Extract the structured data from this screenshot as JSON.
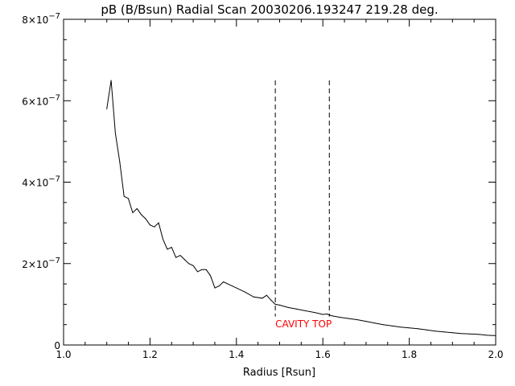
{
  "chart_data": {
    "type": "line",
    "title": "pB (B/Bsun) Radial Scan 20030206.193247 219.28 deg.",
    "xlabel": "Radius [Rsun]",
    "ylabel": "",
    "xlim": [
      1.0,
      2.0
    ],
    "ylim": [
      0,
      8e-07
    ],
    "x_ticks": [
      {
        "value": 1.0,
        "label": "1.0"
      },
      {
        "value": 1.2,
        "label": "1.2"
      },
      {
        "value": 1.4,
        "label": "1.4"
      },
      {
        "value": 1.6,
        "label": "1.6"
      },
      {
        "value": 1.8,
        "label": "1.8"
      },
      {
        "value": 2.0,
        "label": "2.0"
      }
    ],
    "y_ticks": [
      {
        "value": 0,
        "mantissa": "0",
        "exponent": ""
      },
      {
        "value": 2e-07,
        "mantissa": "2×10",
        "exponent": "−7"
      },
      {
        "value": 4e-07,
        "mantissa": "4×10",
        "exponent": "−7"
      },
      {
        "value": 6e-07,
        "mantissa": "6×10",
        "exponent": "−7"
      },
      {
        "value": 8e-07,
        "mantissa": "8×10",
        "exponent": "−7"
      }
    ],
    "grid": false,
    "series": [
      {
        "color": "#000000",
        "x": [
          1.1,
          1.11,
          1.12,
          1.13,
          1.14,
          1.15,
          1.16,
          1.17,
          1.18,
          1.19,
          1.2,
          1.21,
          1.22,
          1.23,
          1.24,
          1.25,
          1.26,
          1.27,
          1.28,
          1.29,
          1.3,
          1.31,
          1.32,
          1.33,
          1.34,
          1.35,
          1.36,
          1.37,
          1.38,
          1.39,
          1.4,
          1.42,
          1.44,
          1.46,
          1.47,
          1.48,
          1.49,
          1.5,
          1.52,
          1.54,
          1.56,
          1.58,
          1.6,
          1.61,
          1.62,
          1.64,
          1.66,
          1.68,
          1.7,
          1.72,
          1.74,
          1.76,
          1.78,
          1.8,
          1.82,
          1.84,
          1.86,
          1.88,
          1.9,
          1.92,
          1.94,
          1.96,
          1.98,
          2.0
        ],
        "y": [
          5.8e-07,
          6.5e-07,
          5.2e-07,
          4.5e-07,
          3.65e-07,
          3.6e-07,
          3.25e-07,
          3.35e-07,
          3.2e-07,
          3.1e-07,
          2.95e-07,
          2.9e-07,
          3e-07,
          2.6e-07,
          2.35e-07,
          2.4e-07,
          2.15e-07,
          2.2e-07,
          2.1e-07,
          2e-07,
          1.95e-07,
          1.8e-07,
          1.85e-07,
          1.85e-07,
          1.7e-07,
          1.4e-07,
          1.45e-07,
          1.55e-07,
          1.5e-07,
          1.45e-07,
          1.4e-07,
          1.3e-07,
          1.18e-07,
          1.15e-07,
          1.22e-07,
          1.1e-07,
          1e-07,
          9.8e-08,
          9.2e-08,
          8.8e-08,
          8.4e-08,
          8e-08,
          7.5e-08,
          7.6e-08,
          7.2e-08,
          6.8e-08,
          6.5e-08,
          6.2e-08,
          5.8e-08,
          5.4e-08,
          5e-08,
          4.7e-08,
          4.4e-08,
          4.2e-08,
          4e-08,
          3.7e-08,
          3.4e-08,
          3.2e-08,
          3e-08,
          2.8e-08,
          2.7e-08,
          2.6e-08,
          2.4e-08,
          2.3e-08
        ]
      }
    ],
    "markers": [
      {
        "x": 1.49,
        "y_top": 6.5e-07,
        "style": "dashed"
      },
      {
        "x": 1.615,
        "y_top": 6.5e-07,
        "style": "dashed"
      }
    ],
    "annotations": [
      {
        "text": "CAVITY TOP",
        "x": 1.49,
        "y": 2e-08,
        "color": "#ff0000"
      }
    ]
  }
}
